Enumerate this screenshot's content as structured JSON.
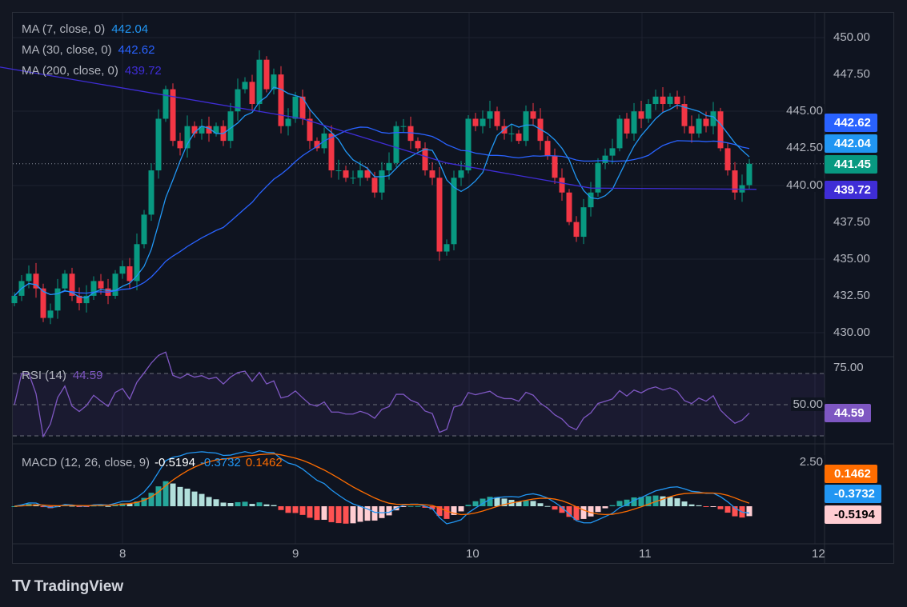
{
  "chart_data": {
    "type": "candlestick",
    "x_ticks": [
      "8",
      "9",
      "10",
      "11",
      "12"
    ],
    "x_start": 7.4,
    "x_step_days": 0.04167,
    "y_ticks": [
      "450.00",
      "447.50",
      "445.00",
      "442.50",
      "440.00",
      "437.50",
      "435.00",
      "432.50",
      "430.00"
    ],
    "ylim": [
      429,
      451
    ],
    "closes": [
      432.5,
      433.5,
      434,
      433,
      431,
      431.5,
      433,
      434,
      432.5,
      432,
      432.5,
      433.5,
      433,
      432.5,
      434,
      434.5,
      433.5,
      436,
      438,
      441,
      444.5,
      446.5,
      443,
      442.5,
      444,
      443.5,
      444,
      443.5,
      444,
      443,
      445,
      446.5,
      447,
      445.5,
      448.5,
      446.5,
      447.5,
      444,
      444.5,
      446,
      444.5,
      443,
      442.5,
      443.5,
      441,
      441,
      440.5,
      440.5,
      441,
      440.5,
      439.5,
      441,
      441.5,
      444,
      444,
      443,
      442.5,
      441,
      440.5,
      435.5,
      436,
      440.5,
      441,
      444.5,
      444,
      444.5,
      445,
      444,
      443.5,
      443.5,
      443,
      445,
      444.5,
      443,
      442,
      440.5,
      439.5,
      437.5,
      436.5,
      438.5,
      439.5,
      441.5,
      442,
      442.5,
      444.5,
      443.5,
      445,
      444.5,
      445.5,
      446,
      445.5,
      446,
      445.5,
      444,
      443.5,
      444.5,
      444,
      445,
      442.5,
      441,
      439.5,
      440,
      441.45
    ],
    "ma200_points": [
      [
        -2,
        448
      ],
      [
        40,
        444.5
      ],
      [
        60,
        441.5
      ],
      [
        80,
        439.8
      ],
      [
        103,
        439.72
      ]
    ],
    "last_price": "441.45",
    "colors": {
      "up": "#089981",
      "down": "#f23645",
      "ma7": "#2196f3",
      "ma30": "#2962ff",
      "ma200": "#3f2dd6",
      "rsi": "#7e57c2",
      "macd": "#2196f3",
      "signal": "#ff6d00"
    },
    "legend": [
      {
        "label": "MA (7, close, 0)",
        "value": "442.04",
        "color": "#2196f3"
      },
      {
        "label": "MA (30, close, 0)",
        "value": "442.62",
        "color": "#2962ff"
      },
      {
        "label": "MA (200, close, 0)",
        "value": "439.72",
        "color": "#3f2dd6"
      }
    ],
    "rsi": {
      "label": "RSI (14)",
      "value": "44.59",
      "ticks": [
        "75.00",
        "50.00"
      ],
      "levels": [
        70,
        50,
        30
      ]
    },
    "macd": {
      "label": "MACD (12, 26, close, 9)",
      "hist": "-0.5194",
      "macd": "-0.3732",
      "signal": "0.1462",
      "ticks": [
        "2.50"
      ]
    }
  },
  "tags": {
    "ma30": "442.62",
    "ma7": "442.04",
    "price": "441.45",
    "ma200": "439.72",
    "rsi": "44.59",
    "signal": "0.1462",
    "macd": "-0.3732",
    "hist": "-0.5194"
  },
  "brand": "TradingView"
}
